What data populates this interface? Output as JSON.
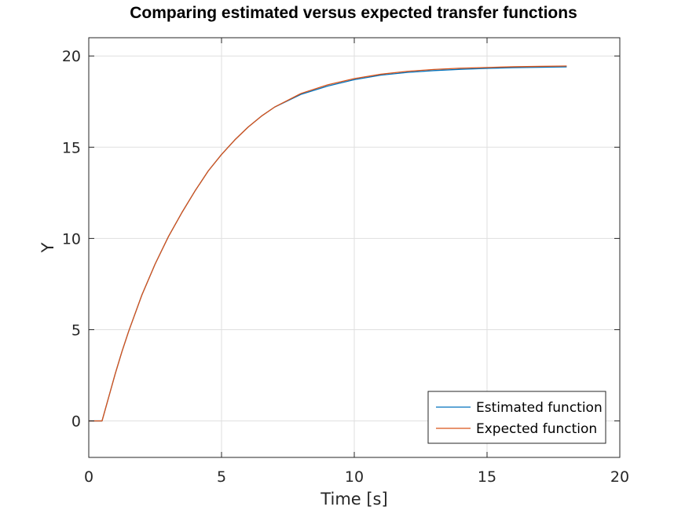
{
  "chart_data": {
    "type": "line",
    "title": "Comparing estimated versus expected transfer functions",
    "xlabel": "Time [s]",
    "ylabel": "Y",
    "xlim": [
      0,
      20
    ],
    "ylim": [
      -2,
      21
    ],
    "xticks": [
      0,
      5,
      10,
      15,
      20
    ],
    "yticks": [
      0,
      5,
      10,
      15,
      20
    ],
    "grid": true,
    "legend_position": "bottom-right",
    "series": [
      {
        "name": "Estimated function",
        "color": "#0072BD",
        "x": [
          0,
          0.5,
          0.75,
          1,
          1.25,
          1.5,
          2,
          2.5,
          3,
          3.5,
          4,
          4.5,
          5,
          5.5,
          6,
          6.5,
          7,
          8,
          9,
          10,
          11,
          12,
          13,
          14,
          15,
          16,
          17,
          18
        ],
        "y": [
          0,
          0,
          1.3,
          2.6,
          3.8,
          4.9,
          6.9,
          8.6,
          10.1,
          11.4,
          12.6,
          13.7,
          14.6,
          15.4,
          16.1,
          16.7,
          17.2,
          17.9,
          18.35,
          18.7,
          18.95,
          19.1,
          19.2,
          19.27,
          19.32,
          19.36,
          19.38,
          19.4
        ]
      },
      {
        "name": "Expected function",
        "color": "#D95319",
        "x": [
          0,
          0.5,
          0.75,
          1,
          1.25,
          1.5,
          2,
          2.5,
          3,
          3.5,
          4,
          4.5,
          5,
          5.5,
          6,
          6.5,
          7,
          8,
          9,
          10,
          11,
          12,
          13,
          14,
          15,
          16,
          17,
          18
        ],
        "y": [
          0,
          0,
          1.3,
          2.6,
          3.8,
          4.9,
          6.9,
          8.6,
          10.1,
          11.4,
          12.6,
          13.7,
          14.6,
          15.4,
          16.1,
          16.7,
          17.2,
          17.95,
          18.42,
          18.76,
          19.0,
          19.16,
          19.26,
          19.33,
          19.37,
          19.41,
          19.43,
          19.45
        ]
      }
    ]
  }
}
